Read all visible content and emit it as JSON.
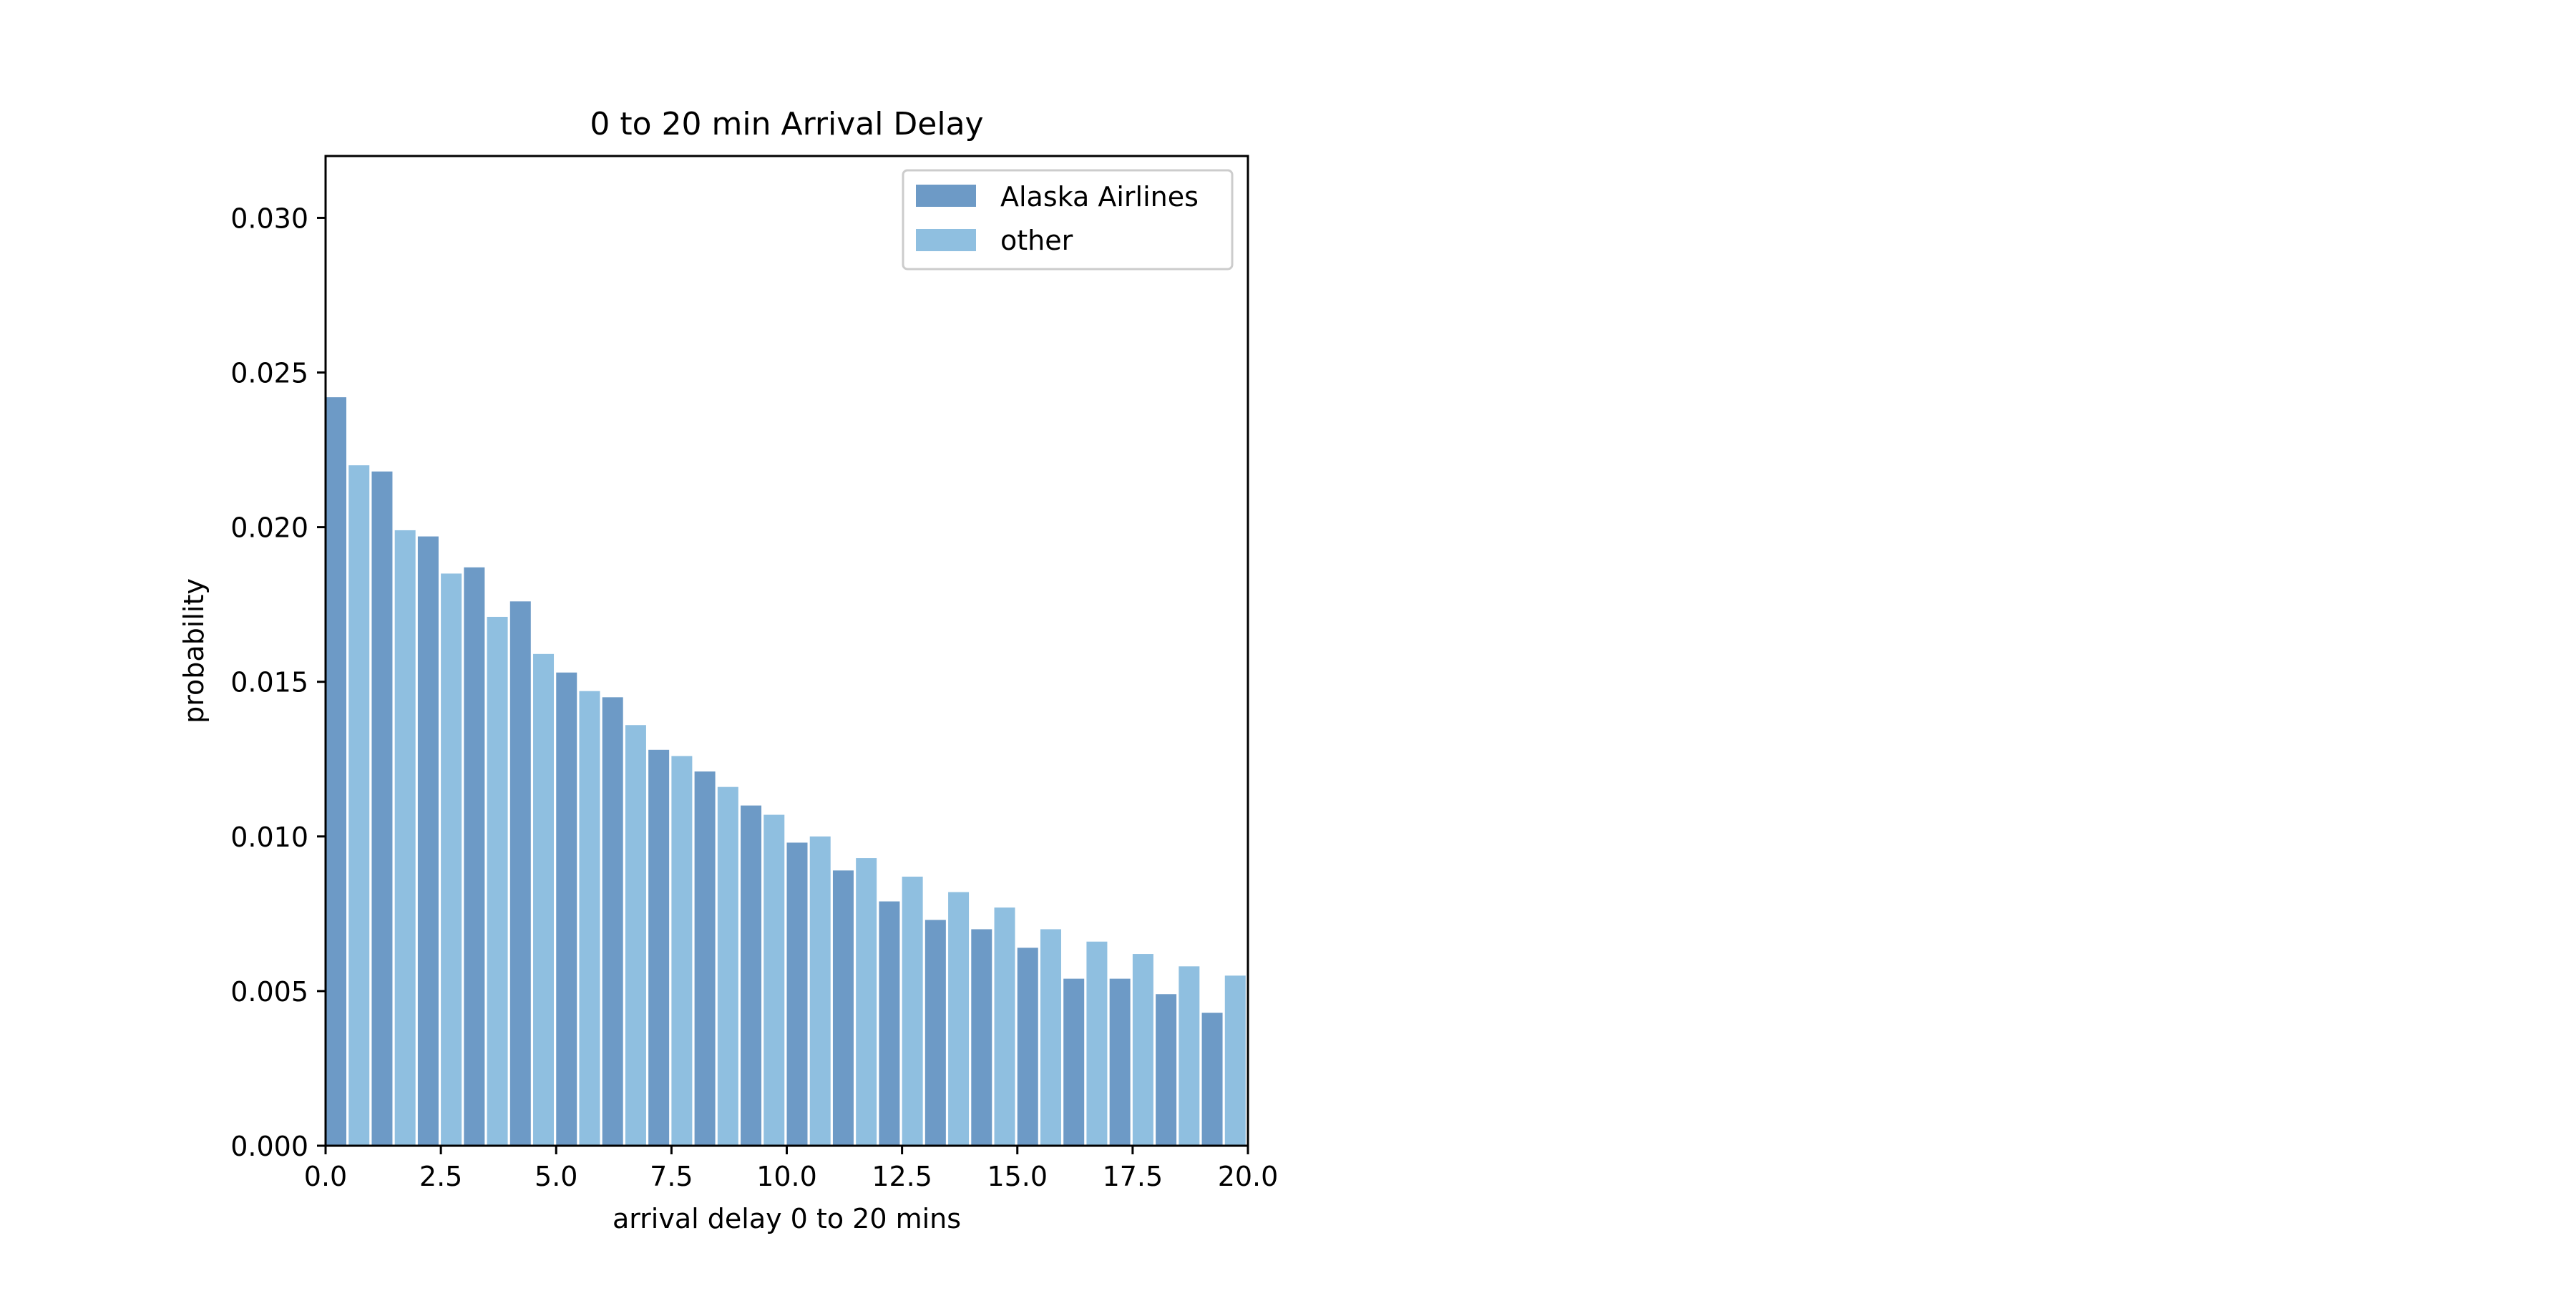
{
  "chart_data": {
    "type": "bar",
    "title": "0 to 20 min Arrival Delay",
    "xlabel": "arrival delay 0 to 20 mins",
    "ylabel": "probability",
    "xlim": [
      0,
      20
    ],
    "ylim": [
      0,
      0.032
    ],
    "xticks": [
      0,
      2.5,
      5,
      7.5,
      10,
      12.5,
      15,
      17.5,
      20
    ],
    "xtick_labels": [
      "0.0",
      "2.5",
      "5.0",
      "7.5",
      "10.0",
      "12.5",
      "15.0",
      "17.5",
      "20.0"
    ],
    "yticks": [
      0,
      0.005,
      0.01,
      0.015,
      0.02,
      0.025,
      0.03
    ],
    "ytick_labels": [
      "0.000",
      "0.005",
      "0.010",
      "0.015",
      "0.020",
      "0.025",
      "0.030"
    ],
    "bin_starts": [
      0,
      1,
      2,
      3,
      4,
      5,
      6,
      7,
      8,
      9,
      10,
      11,
      12,
      13,
      14,
      15,
      16,
      17,
      18,
      19
    ],
    "bin_width": 1,
    "legend_position": "top-right",
    "grid": false,
    "series": [
      {
        "name": "Alaska Airlines",
        "color": "#6d9ac6",
        "values": [
          0.0242,
          0.0218,
          0.0197,
          0.0187,
          0.0176,
          0.0153,
          0.0145,
          0.0128,
          0.0121,
          0.011,
          0.0098,
          0.0089,
          0.0079,
          0.0073,
          0.007,
          0.0064,
          0.0054,
          0.0054,
          0.0049,
          0.0043
        ]
      },
      {
        "name": "other",
        "color": "#8fbfe0",
        "values": [
          0.022,
          0.0199,
          0.0185,
          0.0171,
          0.0159,
          0.0147,
          0.0136,
          0.0126,
          0.0116,
          0.0107,
          0.01,
          0.0093,
          0.0087,
          0.0082,
          0.0077,
          0.007,
          0.0066,
          0.0062,
          0.0058,
          0.0055
        ]
      }
    ]
  }
}
